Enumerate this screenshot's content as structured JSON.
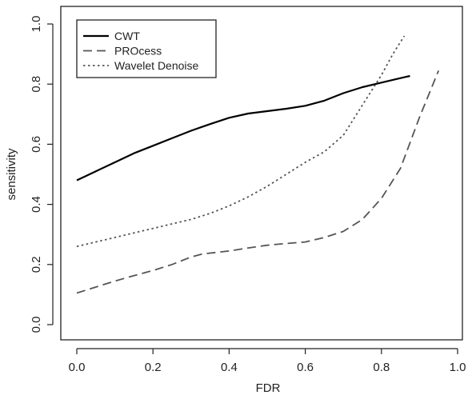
{
  "chart_data": {
    "type": "line",
    "title": "",
    "xlabel": "FDR",
    "ylabel": "sensitivity",
    "xlim": [
      0.0,
      1.0
    ],
    "ylim": [
      0.0,
      1.0
    ],
    "x_ticks": [
      0.0,
      0.2,
      0.4,
      0.6,
      0.8,
      1.0
    ],
    "y_ticks": [
      0.0,
      0.2,
      0.4,
      0.6,
      0.8,
      1.0
    ],
    "x_tick_labels": [
      "0.0",
      "0.2",
      "0.4",
      "0.6",
      "0.8",
      "1.0"
    ],
    "y_tick_labels": [
      "0.0",
      "0.2",
      "0.4",
      "0.6",
      "0.8",
      "1.0"
    ],
    "grid": false,
    "legend_position": "top-left",
    "series": [
      {
        "name": "CWT",
        "line_style": "solid",
        "color": "#000000",
        "points": [
          [
            0.0,
            0.48
          ],
          [
            0.05,
            0.51
          ],
          [
            0.1,
            0.54
          ],
          [
            0.15,
            0.57
          ],
          [
            0.2,
            0.595
          ],
          [
            0.25,
            0.62
          ],
          [
            0.3,
            0.645
          ],
          [
            0.35,
            0.667
          ],
          [
            0.4,
            0.688
          ],
          [
            0.45,
            0.702
          ],
          [
            0.5,
            0.71
          ],
          [
            0.55,
            0.718
          ],
          [
            0.6,
            0.728
          ],
          [
            0.65,
            0.745
          ],
          [
            0.7,
            0.77
          ],
          [
            0.75,
            0.79
          ],
          [
            0.8,
            0.805
          ],
          [
            0.85,
            0.82
          ],
          [
            0.875,
            0.827
          ]
        ]
      },
      {
        "name": "PROcess",
        "line_style": "dashed",
        "color": "#555555",
        "points": [
          [
            0.0,
            0.105
          ],
          [
            0.05,
            0.125
          ],
          [
            0.1,
            0.145
          ],
          [
            0.15,
            0.163
          ],
          [
            0.2,
            0.18
          ],
          [
            0.25,
            0.2
          ],
          [
            0.3,
            0.225
          ],
          [
            0.33,
            0.235
          ],
          [
            0.4,
            0.245
          ],
          [
            0.45,
            0.255
          ],
          [
            0.5,
            0.264
          ],
          [
            0.55,
            0.27
          ],
          [
            0.6,
            0.275
          ],
          [
            0.65,
            0.29
          ],
          [
            0.7,
            0.31
          ],
          [
            0.75,
            0.35
          ],
          [
            0.8,
            0.42
          ],
          [
            0.85,
            0.52
          ],
          [
            0.9,
            0.69
          ],
          [
            0.95,
            0.845
          ]
        ]
      },
      {
        "name": "Wavelet Denoise",
        "line_style": "dotted",
        "color": "#555555",
        "points": [
          [
            0.0,
            0.26
          ],
          [
            0.05,
            0.275
          ],
          [
            0.1,
            0.29
          ],
          [
            0.15,
            0.305
          ],
          [
            0.2,
            0.32
          ],
          [
            0.25,
            0.335
          ],
          [
            0.3,
            0.35
          ],
          [
            0.35,
            0.37
          ],
          [
            0.4,
            0.395
          ],
          [
            0.45,
            0.425
          ],
          [
            0.5,
            0.46
          ],
          [
            0.55,
            0.5
          ],
          [
            0.6,
            0.54
          ],
          [
            0.65,
            0.575
          ],
          [
            0.7,
            0.63
          ],
          [
            0.75,
            0.73
          ],
          [
            0.8,
            0.83
          ],
          [
            0.83,
            0.9
          ],
          [
            0.86,
            0.96
          ]
        ]
      }
    ]
  }
}
